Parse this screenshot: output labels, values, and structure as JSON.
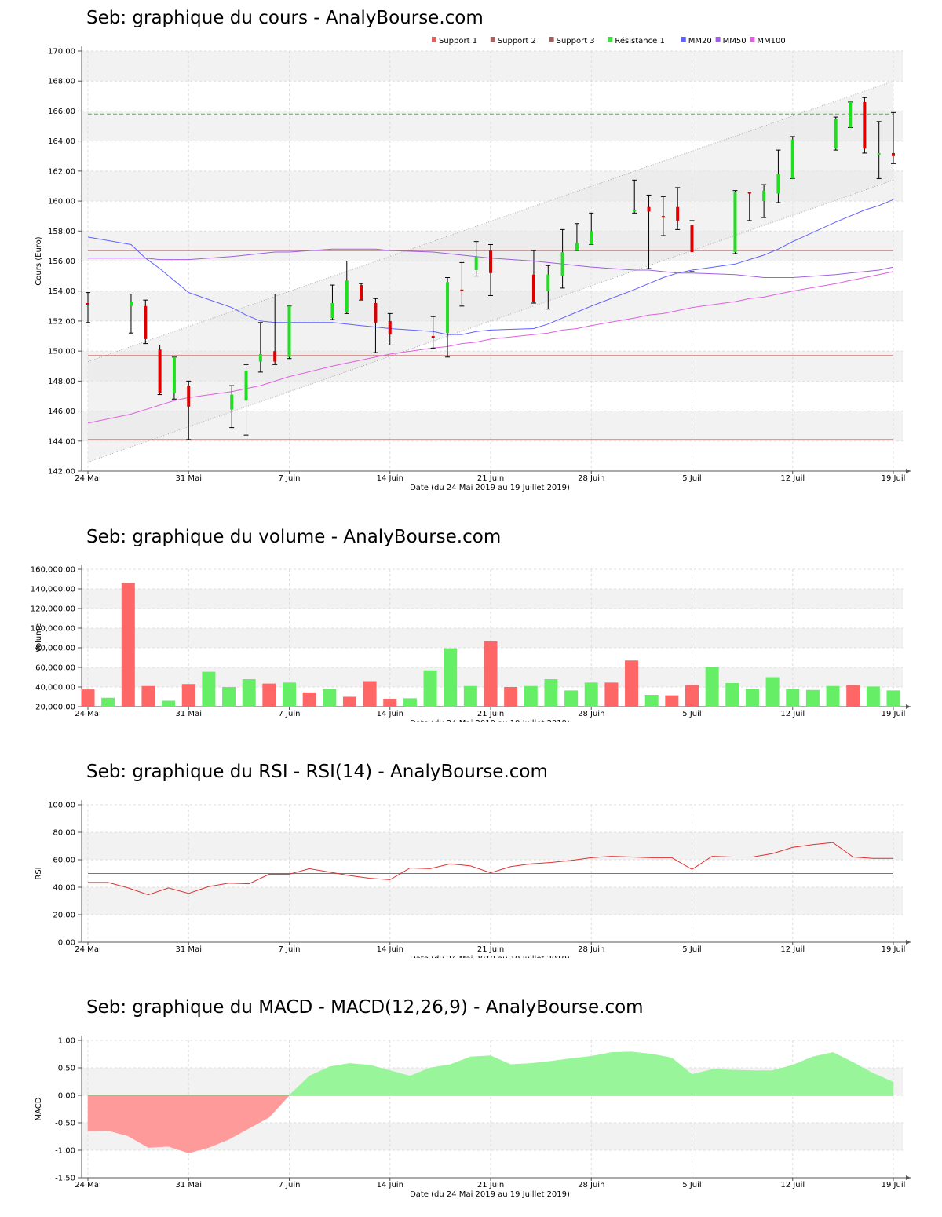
{
  "titles": {
    "price": "Seb: graphique du cours - AnalyBourse.com",
    "volume": "Seb: graphique du volume - AnalyBourse.com",
    "rsi": "Seb: graphique du RSI - RSI(14) - AnalyBourse.com",
    "macd": "Seb: graphique du MACD - MACD(12,26,9) - AnalyBourse.com"
  },
  "shared": {
    "x_tick_labels": [
      "24 Mai",
      "31 Mai",
      "7 Juin",
      "14 Juin",
      "21 Juin",
      "28 Juin",
      "5 Juil",
      "12 Juil",
      "19 Juil"
    ],
    "x_tick_days": [
      0,
      7,
      14,
      21,
      28,
      35,
      42,
      49,
      56
    ],
    "xlabel": "Date (du 24 Mai 2019 au 19 Juillet 2019)"
  },
  "chart_data": [
    {
      "type": "candlestick",
      "name": "price",
      "ylabel": "Cours (Euro)",
      "ylim": [
        142,
        170
      ],
      "y_ticks": [
        "142.00",
        "144.00",
        "146.00",
        "148.00",
        "150.00",
        "152.00",
        "154.00",
        "156.00",
        "158.00",
        "160.00",
        "162.00",
        "164.00",
        "166.00",
        "168.00",
        "170.00"
      ],
      "legend": [
        {
          "label": "Support 1",
          "color": "#e06060"
        },
        {
          "label": "Support 2",
          "color": "#b06060"
        },
        {
          "label": "Support 3",
          "color": "#a06060"
        },
        {
          "label": "Résistance 1",
          "color": "#40e040"
        },
        {
          "label": "MM20",
          "color": "#6060ff"
        },
        {
          "label": "MM50",
          "color": "#a060e0"
        },
        {
          "label": "MM100",
          "color": "#e060e0"
        }
      ],
      "dates": [
        "24 Mai",
        "27 Mai",
        "28 Mai",
        "29 Mai",
        "30 Mai",
        "31 Mai",
        "3 Juin",
        "4 Juin",
        "5 Juin",
        "6 Juin",
        "7 Juin",
        "10 Juin",
        "11 Juin",
        "12 Juin",
        "13 Juin",
        "14 Juin",
        "17 Juin",
        "18 Juin",
        "19 Juin",
        "20 Juin",
        "21 Juin",
        "24 Juin",
        "25 Juin",
        "26 Juin",
        "27 Juin",
        "28 Juin",
        "1 Juil",
        "2 Juil",
        "3 Juil",
        "4 Juil",
        "5 Juil",
        "8 Juil",
        "9 Juil",
        "10 Juil",
        "11 Juil",
        "12 Juil",
        "15 Juil",
        "16 Juil",
        "17 Juil",
        "18 Juil",
        "19 Juil"
      ],
      "days": [
        0,
        3,
        4,
        5,
        6,
        7,
        10,
        11,
        12,
        13,
        14,
        17,
        18,
        19,
        20,
        21,
        24,
        25,
        26,
        27,
        28,
        31,
        32,
        33,
        34,
        35,
        38,
        39,
        40,
        41,
        42,
        45,
        46,
        47,
        48,
        49,
        52,
        53,
        54,
        55,
        56
      ],
      "open": [
        153.2,
        153.0,
        153.0,
        150.1,
        147.2,
        147.7,
        146.1,
        146.7,
        149.3,
        150.0,
        149.6,
        152.2,
        152.6,
        154.4,
        153.2,
        152.0,
        151.0,
        151.2,
        154.1,
        155.4,
        156.7,
        155.1,
        154.0,
        155.0,
        156.7,
        157.1,
        159.3,
        159.6,
        159.0,
        159.6,
        158.4,
        156.6,
        160.6,
        160.0,
        160.5,
        161.5,
        163.5,
        164.9,
        166.6,
        163.1,
        163.2
      ],
      "high": [
        153.9,
        153.8,
        153.4,
        150.4,
        149.6,
        148.0,
        147.7,
        149.1,
        151.9,
        153.8,
        153.0,
        154.4,
        156.0,
        154.5,
        153.5,
        152.5,
        152.3,
        154.9,
        155.9,
        157.3,
        157.1,
        156.7,
        155.7,
        158.1,
        158.5,
        159.2,
        161.4,
        160.4,
        160.3,
        160.9,
        158.7,
        160.7,
        160.6,
        161.1,
        163.4,
        164.3,
        165.6,
        166.6,
        166.9,
        165.3,
        165.9
      ],
      "low": [
        151.9,
        151.2,
        150.5,
        147.1,
        146.8,
        144.1,
        144.9,
        144.4,
        148.6,
        149.1,
        149.5,
        152.1,
        152.5,
        153.4,
        149.9,
        150.4,
        150.2,
        149.6,
        153.0,
        155.0,
        153.7,
        153.2,
        152.8,
        154.2,
        156.7,
        157.1,
        159.2,
        155.5,
        157.7,
        158.1,
        155.3,
        156.5,
        158.7,
        158.9,
        159.9,
        161.5,
        163.4,
        164.9,
        163.2,
        161.5,
        162.5
      ],
      "close": [
        153.1,
        153.3,
        150.8,
        147.2,
        149.6,
        146.3,
        147.1,
        148.7,
        149.8,
        149.3,
        153.0,
        153.2,
        154.7,
        153.4,
        151.9,
        151.1,
        150.9,
        154.6,
        154.0,
        156.3,
        155.2,
        153.3,
        155.1,
        156.6,
        157.2,
        158.0,
        159.4,
        159.3,
        158.9,
        158.7,
        156.6,
        160.6,
        160.5,
        160.7,
        161.8,
        164.1,
        165.5,
        166.6,
        163.5,
        163.2,
        163.0
      ],
      "mm20": [
        157.6,
        157.1,
        156.2,
        155.5,
        154.7,
        153.9,
        152.9,
        152.4,
        152.0,
        151.9,
        151.9,
        151.9,
        151.8,
        151.7,
        151.6,
        151.5,
        151.3,
        151.1,
        151.1,
        151.3,
        151.4,
        151.5,
        151.8,
        152.2,
        152.6,
        153.0,
        154.1,
        154.5,
        154.9,
        155.2,
        155.4,
        155.8,
        156.1,
        156.4,
        156.8,
        157.3,
        158.6,
        159.0,
        159.4,
        159.7,
        160.1
      ],
      "mm50": [
        156.2,
        156.2,
        156.2,
        156.1,
        156.1,
        156.1,
        156.3,
        156.4,
        156.5,
        156.6,
        156.6,
        156.8,
        156.8,
        156.8,
        156.8,
        156.7,
        156.6,
        156.5,
        156.4,
        156.3,
        156.2,
        156.0,
        155.9,
        155.8,
        155.7,
        155.6,
        155.4,
        155.4,
        155.3,
        155.2,
        155.2,
        155.1,
        155.0,
        154.9,
        154.9,
        154.9,
        155.1,
        155.2,
        155.3,
        155.4,
        155.6
      ],
      "mm100": [
        145.2,
        145.8,
        146.1,
        146.4,
        146.7,
        146.9,
        147.3,
        147.5,
        147.7,
        148.0,
        148.3,
        149.0,
        149.2,
        149.4,
        149.6,
        149.8,
        150.2,
        150.3,
        150.5,
        150.6,
        150.8,
        151.1,
        151.2,
        151.4,
        151.5,
        151.7,
        152.2,
        152.4,
        152.5,
        152.7,
        152.9,
        153.3,
        153.5,
        153.6,
        153.8,
        154.0,
        154.5,
        154.7,
        154.9,
        155.1,
        155.3
      ],
      "support_1": 144.1,
      "support_2": 149.7,
      "support_3": 156.7,
      "resistance_1": 165.8,
      "channel_lower": [
        142.6,
        161.4
      ],
      "channel_upper": [
        149.3,
        168.0
      ]
    },
    {
      "type": "bar",
      "name": "volume",
      "ylabel": "Volume",
      "ylim": [
        20000,
        160000
      ],
      "y_ticks": [
        "20,000.00",
        "40,000.00",
        "60,000.00",
        "80,000.00",
        "100,000.00",
        "120,000.00",
        "140,000.00",
        "160,000.00"
      ],
      "values": [
        37500,
        29000,
        146000,
        41000,
        26000,
        43000,
        55500,
        40000,
        48000,
        43500,
        44500,
        34500,
        38000,
        30000,
        46000,
        28000,
        28500,
        57000,
        79500,
        41000,
        86500,
        40000,
        41000,
        48000,
        36500,
        44500,
        44500,
        67000,
        32000,
        31500,
        42000,
        60500,
        44000,
        38000,
        50000,
        38000,
        37000,
        41000,
        42000,
        40500,
        36500
      ],
      "up": [
        false,
        true,
        false,
        false,
        true,
        false,
        true,
        true,
        true,
        false,
        true,
        false,
        true,
        false,
        false,
        false,
        true,
        true,
        true,
        true,
        false,
        false,
        true,
        true,
        true,
        true,
        false,
        false,
        true,
        false,
        false,
        true,
        true,
        true,
        true,
        true,
        true,
        true,
        false,
        true,
        true
      ]
    },
    {
      "type": "line",
      "name": "rsi",
      "ylabel": "RSI",
      "ylim": [
        0,
        100
      ],
      "y_ticks": [
        "0.00",
        "20.00",
        "40.00",
        "60.00",
        "80.00",
        "100.00"
      ],
      "reference": 50,
      "values": [
        43.5,
        43.5,
        39.5,
        34.5,
        39.5,
        35.5,
        40.5,
        43.0,
        42.5,
        49.5,
        49.5,
        53.5,
        51.0,
        48.5,
        46.5,
        45.5,
        54.0,
        53.5,
        57.0,
        55.5,
        50.5,
        55.0,
        57.0,
        58.0,
        59.5,
        61.5,
        62.5,
        62.0,
        61.5,
        61.5,
        53.0,
        62.5,
        62.0,
        62.0,
        64.5,
        69.0,
        71.0,
        72.5,
        62.0,
        61.0,
        61.0
      ]
    },
    {
      "type": "area",
      "name": "macd",
      "ylabel": "MACD",
      "ylim": [
        -1.5,
        1.0
      ],
      "y_ticks": [
        "-1.50",
        "-1.00",
        "-0.50",
        "0.00",
        "0.50",
        "1.00"
      ],
      "values": [
        -0.65,
        -0.64,
        -0.74,
        -0.95,
        -0.93,
        -1.05,
        -0.95,
        -0.8,
        -0.6,
        -0.4,
        0.0,
        0.35,
        0.52,
        0.58,
        0.55,
        0.45,
        0.35,
        0.5,
        0.56,
        0.7,
        0.72,
        0.56,
        0.58,
        0.62,
        0.67,
        0.71,
        0.78,
        0.79,
        0.75,
        0.68,
        0.38,
        0.47,
        0.46,
        0.45,
        0.45,
        0.55,
        0.7,
        0.78,
        0.6,
        0.4,
        0.24
      ]
    }
  ]
}
